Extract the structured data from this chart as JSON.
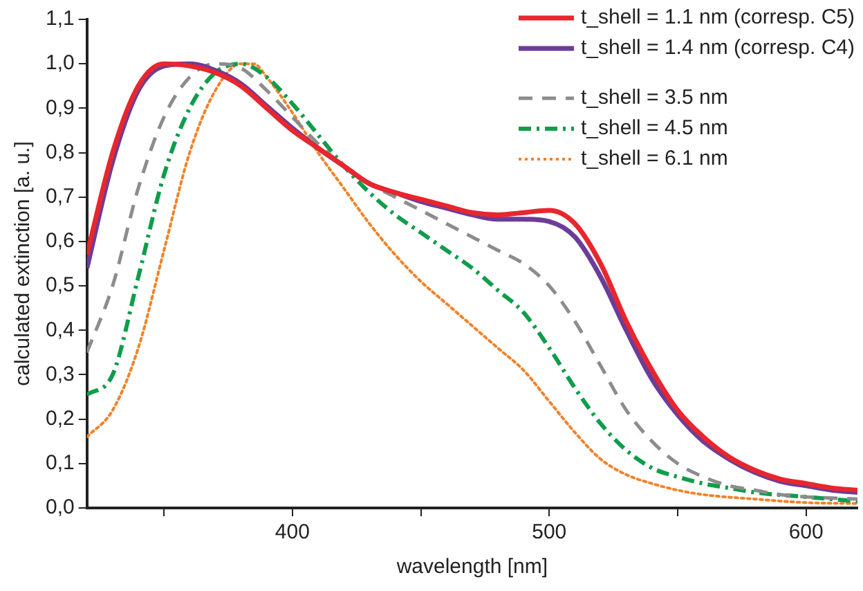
{
  "chart_data": {
    "type": "line",
    "xlabel": "wavelength [nm]",
    "ylabel": "calculated extinction [a. u.]",
    "xlim": [
      320,
      620
    ],
    "ylim": [
      0,
      1.1
    ],
    "xticks": [
      {
        "value": 350,
        "label": null
      },
      400,
      {
        "value": 450,
        "label": null
      },
      500,
      {
        "value": 550,
        "label": null
      },
      600
    ],
    "yticks": [
      {
        "value": 0,
        "label": "0,0"
      },
      {
        "value": 0.1,
        "label": "0,1"
      },
      {
        "value": 0.2,
        "label": "0,2"
      },
      {
        "value": 0.3,
        "label": "0,3"
      },
      {
        "value": 0.4,
        "label": "0,4"
      },
      {
        "value": 0.5,
        "label": "0,5"
      },
      {
        "value": 0.6,
        "label": "0,6"
      },
      {
        "value": 0.7,
        "label": "0,7"
      },
      {
        "value": 0.8,
        "label": "0,8"
      },
      {
        "value": 0.9,
        "label": "0,9"
      },
      {
        "value": 1.0,
        "label": "1,0"
      },
      {
        "value": 1.1,
        "label": "1,1"
      }
    ],
    "grid": false,
    "legend": "top right",
    "marker": "none",
    "series": [
      {
        "name": "t_shell = 1.1 nm (corresp. C5)",
        "color": "#e8262d",
        "line_style": "solid",
        "x": [
          320,
          330,
          340,
          350,
          360,
          370,
          380,
          390,
          400,
          410,
          420,
          430,
          440,
          450,
          460,
          470,
          480,
          490,
          500,
          510,
          520,
          530,
          540,
          550,
          560,
          570,
          580,
          590,
          600,
          610,
          620
        ],
        "values": [
          0.57,
          0.8,
          0.95,
          1.0,
          0.995,
          0.98,
          0.95,
          0.9,
          0.85,
          0.81,
          0.77,
          0.73,
          0.71,
          0.695,
          0.68,
          0.665,
          0.66,
          0.665,
          0.67,
          0.64,
          0.55,
          0.42,
          0.31,
          0.22,
          0.16,
          0.115,
          0.085,
          0.065,
          0.055,
          0.045,
          0.04
        ]
      },
      {
        "name": "t_shell = 1.4 nm (corresp. C4)",
        "color": "#6a3d9a",
        "line_style": "solid",
        "x": [
          320,
          330,
          340,
          350,
          360,
          370,
          380,
          390,
          400,
          410,
          420,
          430,
          440,
          450,
          460,
          470,
          480,
          490,
          500,
          510,
          520,
          530,
          540,
          550,
          560,
          570,
          580,
          590,
          600,
          610,
          620
        ],
        "values": [
          0.54,
          0.78,
          0.94,
          0.995,
          1.0,
          0.985,
          0.955,
          0.905,
          0.855,
          0.81,
          0.77,
          0.73,
          0.71,
          0.69,
          0.675,
          0.66,
          0.65,
          0.65,
          0.645,
          0.61,
          0.52,
          0.4,
          0.29,
          0.21,
          0.15,
          0.11,
          0.08,
          0.06,
          0.05,
          0.04,
          0.035
        ]
      },
      {
        "name": "t_shell = 3.5 nm",
        "color": "#8c8c8c",
        "line_style": "dashed",
        "x": [
          320,
          330,
          340,
          350,
          360,
          370,
          380,
          390,
          400,
          410,
          420,
          430,
          440,
          450,
          460,
          470,
          480,
          490,
          500,
          510,
          520,
          530,
          540,
          550,
          560,
          570,
          580,
          590,
          600,
          620
        ],
        "values": [
          0.35,
          0.5,
          0.72,
          0.88,
          0.97,
          1.0,
          0.99,
          0.94,
          0.88,
          0.82,
          0.77,
          0.73,
          0.7,
          0.67,
          0.64,
          0.61,
          0.58,
          0.55,
          0.5,
          0.42,
          0.32,
          0.22,
          0.15,
          0.1,
          0.07,
          0.05,
          0.04,
          0.03,
          0.025,
          0.02
        ]
      },
      {
        "name": "t_shell = 4.5 nm",
        "color": "#0f9d4a",
        "line_style": "dashdot",
        "x": [
          320,
          330,
          340,
          350,
          360,
          370,
          380,
          390,
          400,
          410,
          420,
          430,
          440,
          450,
          460,
          470,
          480,
          490,
          500,
          510,
          520,
          530,
          540,
          550,
          560,
          570,
          580,
          600,
          620
        ],
        "values": [
          0.255,
          0.3,
          0.52,
          0.75,
          0.9,
          0.98,
          1.0,
          0.97,
          0.91,
          0.84,
          0.77,
          0.71,
          0.66,
          0.62,
          0.58,
          0.54,
          0.49,
          0.44,
          0.36,
          0.27,
          0.19,
          0.13,
          0.09,
          0.07,
          0.055,
          0.045,
          0.035,
          0.025,
          0.015
        ]
      },
      {
        "name": "t_shell = 6.1 nm",
        "color": "#f0832a",
        "line_style": "dotted",
        "x": [
          320,
          330,
          340,
          350,
          360,
          370,
          380,
          385,
          390,
          400,
          410,
          420,
          430,
          440,
          450,
          460,
          470,
          480,
          490,
          500,
          510,
          520,
          530,
          540,
          550,
          560,
          580,
          600,
          620
        ],
        "values": [
          0.16,
          0.22,
          0.36,
          0.58,
          0.8,
          0.94,
          1.0,
          1.0,
          0.97,
          0.89,
          0.8,
          0.72,
          0.64,
          0.57,
          0.51,
          0.46,
          0.41,
          0.36,
          0.31,
          0.24,
          0.17,
          0.11,
          0.075,
          0.055,
          0.04,
          0.03,
          0.02,
          0.012,
          0.01
        ]
      }
    ]
  }
}
